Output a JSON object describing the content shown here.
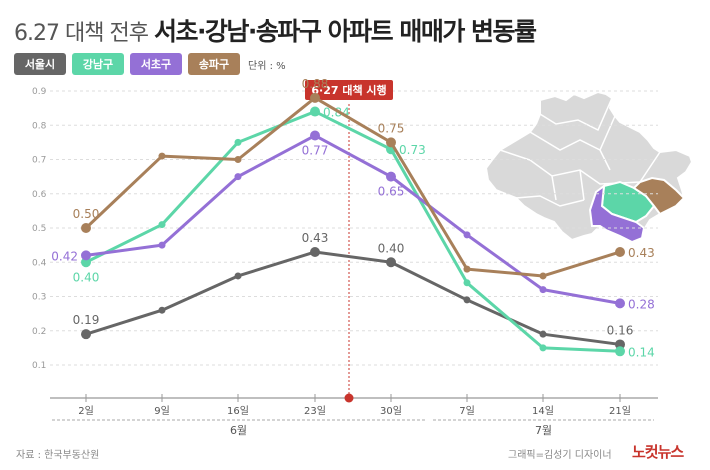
{
  "title": {
    "prefix": "6.27 대책 전후",
    "main": "서초·강남·송파구 아파트 매매가 변동률"
  },
  "legend": {
    "items": [
      {
        "label": "서울시",
        "color": "#666666"
      },
      {
        "label": "강남구",
        "color": "#5cd6a8"
      },
      {
        "label": "서초구",
        "color": "#9470d6"
      },
      {
        "label": "송파구",
        "color": "#a8805a"
      }
    ],
    "unit": "단위 : %"
  },
  "event": {
    "label": "6·27 대책 시행",
    "color": "#c8342c"
  },
  "footer": {
    "source": "자료 : 한국부동산원",
    "credit": "그래픽=김성기 디자이너",
    "logo": "노컷뉴스"
  },
  "chart_data": {
    "type": "line",
    "categories": [
      "2일",
      "9일",
      "16일",
      "23일",
      "30일",
      "7일",
      "14일",
      "21일"
    ],
    "month_groups": [
      {
        "label": "6월",
        "start": 0,
        "end": 4
      },
      {
        "label": "7월",
        "start": 5,
        "end": 7
      }
    ],
    "ylim": [
      0.1,
      0.9
    ],
    "ytick_labels": [
      "0.1",
      "0.2",
      "0.3",
      "0.4",
      "0.5",
      "0.6",
      "0.7",
      "0.8",
      "0.9"
    ],
    "grid": true,
    "event_between": [
      3,
      4
    ],
    "series": [
      {
        "name": "서울시",
        "color": "#666666",
        "values": [
          0.19,
          0.26,
          0.36,
          0.43,
          0.4,
          0.29,
          0.19,
          0.16
        ],
        "labels": [
          {
            "i": 0,
            "text": "0.19",
            "pos": "above"
          },
          {
            "i": 3,
            "text": "0.43",
            "pos": "above"
          },
          {
            "i": 4,
            "text": "0.40",
            "pos": "above"
          },
          {
            "i": 7,
            "text": "0.16",
            "pos": "above"
          }
        ]
      },
      {
        "name": "강남구",
        "color": "#5cd6a8",
        "values": [
          0.4,
          0.51,
          0.75,
          0.84,
          0.73,
          0.34,
          0.15,
          0.14
        ],
        "labels": [
          {
            "i": 0,
            "text": "0.40",
            "pos": "below"
          },
          {
            "i": 3,
            "text": "0.84",
            "pos": "right"
          },
          {
            "i": 4,
            "text": "0.73",
            "pos": "right"
          },
          {
            "i": 7,
            "text": "0.14",
            "pos": "right"
          }
        ]
      },
      {
        "name": "서초구",
        "color": "#9470d6",
        "values": [
          0.42,
          0.45,
          0.65,
          0.77,
          0.65,
          0.48,
          0.32,
          0.28
        ],
        "labels": [
          {
            "i": 0,
            "text": "0.42",
            "pos": "left"
          },
          {
            "i": 3,
            "text": "0.77",
            "pos": "below"
          },
          {
            "i": 4,
            "text": "0.65",
            "pos": "below"
          },
          {
            "i": 7,
            "text": "0.28",
            "pos": "right"
          }
        ]
      },
      {
        "name": "송파구",
        "color": "#a8805a",
        "values": [
          0.5,
          0.71,
          0.7,
          0.88,
          0.75,
          0.38,
          0.36,
          0.43
        ],
        "labels": [
          {
            "i": 0,
            "text": "0.50",
            "pos": "above"
          },
          {
            "i": 3,
            "text": "0.88",
            "pos": "above"
          },
          {
            "i": 4,
            "text": "0.75",
            "pos": "above"
          },
          {
            "i": 7,
            "text": "0.43",
            "pos": "right"
          }
        ]
      }
    ]
  }
}
